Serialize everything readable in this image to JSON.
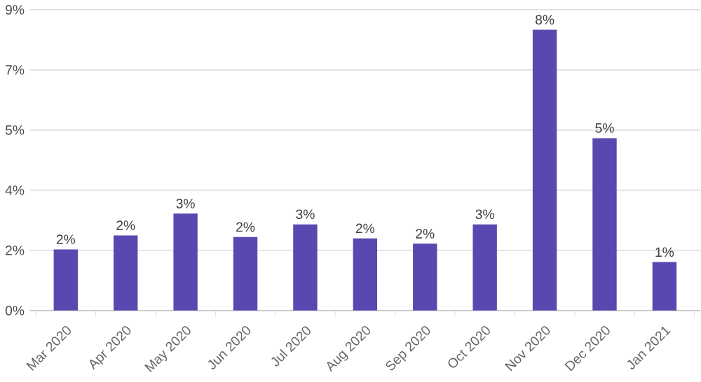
{
  "chart_data": {
    "type": "bar",
    "categories": [
      "Mar 2020",
      "Apr 2020",
      "May 2020",
      "Jun 2020",
      "Jul 2020",
      "Aug 2020",
      "Sep 2020",
      "Oct 2020",
      "Nov 2020",
      "Dec 2020",
      "Jan 2021"
    ],
    "values": [
      1.83,
      2.25,
      2.9,
      2.2,
      2.58,
      2.16,
      2.0,
      2.58,
      8.4,
      5.16,
      1.45
    ],
    "value_labels": [
      "2%",
      "2%",
      "3%",
      "2%",
      "3%",
      "2%",
      "2%",
      "3%",
      "8%",
      "5%",
      "1%"
    ],
    "color": "#5b47b0",
    "ylim": [
      0,
      9
    ],
    "yticks": [
      {
        "value": 0,
        "label": "0%"
      },
      {
        "value": 1.8,
        "label": "2%"
      },
      {
        "value": 3.6,
        "label": "4%"
      },
      {
        "value": 5.4,
        "label": "5%"
      },
      {
        "value": 7.2,
        "label": "7%"
      },
      {
        "value": 9,
        "label": "9%"
      }
    ],
    "grid": "y"
  }
}
